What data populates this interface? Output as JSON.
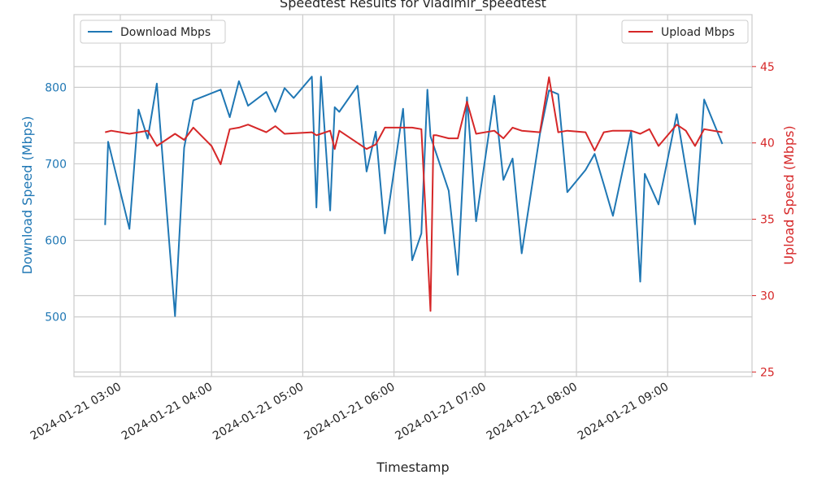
{
  "chart_data": {
    "type": "line",
    "title": "Speedtest Results for vladimir_speedtest",
    "xlabel": "Timestamp",
    "ylabel_left": "Download Speed (Mbps)",
    "ylabel_right": "Upload Speed (Mbps)",
    "x_ticks": [
      "2024-01-21 03:00",
      "2024-01-21 04:00",
      "2024-01-21 05:00",
      "2024-01-21 06:00",
      "2024-01-21 07:00",
      "2024-01-21 08:00",
      "2024-01-21 09:00"
    ],
    "y_left_ticks": [
      500,
      600,
      700,
      800
    ],
    "y_right_ticks": [
      25,
      30,
      35,
      40,
      45
    ],
    "ylim_left": [
      422,
      895
    ],
    "ylim_right": [
      24.7,
      48.4
    ],
    "grid": true,
    "colors": {
      "download": "#1f77b4",
      "upload": "#d62728",
      "grid": "#cccccc",
      "text": "#262626"
    },
    "series": [
      {
        "name": "Download Mbps",
        "axis": "left",
        "legend_position": "top-left",
        "x": [
          "02:50",
          "02:52",
          "03:06",
          "03:12",
          "03:18",
          "03:24",
          "03:30",
          "03:36",
          "03:42",
          "03:48",
          "04:06",
          "04:12",
          "04:18",
          "04:24",
          "04:36",
          "04:42",
          "04:48",
          "04:54",
          "05:06",
          "05:09",
          "05:12",
          "05:18",
          "05:21",
          "05:24",
          "05:36",
          "05:42",
          "05:48",
          "05:54",
          "06:06",
          "06:12",
          "06:18",
          "06:22",
          "06:24",
          "06:36",
          "06:42",
          "06:48",
          "06:54",
          "07:06",
          "07:12",
          "07:18",
          "07:24",
          "07:36",
          "07:42",
          "07:48",
          "07:54",
          "08:06",
          "08:12",
          "08:18",
          "08:24",
          "08:36",
          "08:42",
          "08:45",
          "08:54",
          "09:06",
          "09:18",
          "09:24",
          "09:36"
        ],
        "y": [
          620,
          729,
          615,
          771,
          733,
          805,
          652,
          501,
          721,
          783,
          797,
          761,
          808,
          776,
          794,
          768,
          799,
          786,
          814,
          643,
          814,
          639,
          774,
          768,
          802,
          690,
          742,
          609,
          772,
          574,
          609,
          797,
          736,
          665,
          555,
          787,
          625,
          789,
          679,
          707,
          583,
          739,
          796,
          791,
          663,
          692,
          713,
          673,
          632,
          743,
          546,
          687,
          647,
          765,
          621,
          784,
          726
        ]
      },
      {
        "name": "Upload Mbps",
        "axis": "right",
        "legend_position": "top-right",
        "x": [
          "02:50",
          "02:54",
          "03:06",
          "03:12",
          "03:18",
          "03:24",
          "03:30",
          "03:36",
          "03:42",
          "03:48",
          "04:00",
          "04:06",
          "04:12",
          "04:18",
          "04:24",
          "04:36",
          "04:42",
          "04:48",
          "05:06",
          "05:09",
          "05:12",
          "05:18",
          "05:21",
          "05:24",
          "05:42",
          "05:48",
          "05:54",
          "06:06",
          "06:12",
          "06:18",
          "06:24",
          "06:26",
          "06:28",
          "06:36",
          "06:42",
          "06:48",
          "06:54",
          "07:06",
          "07:12",
          "07:18",
          "07:24",
          "07:36",
          "07:42",
          "07:48",
          "07:54",
          "08:06",
          "08:12",
          "08:18",
          "08:24",
          "08:36",
          "08:42",
          "08:48",
          "08:54",
          "09:06",
          "09:12",
          "09:18",
          "09:24",
          "09:36"
        ],
        "y": [
          40.7,
          40.8,
          40.6,
          40.7,
          40.8,
          39.8,
          40.2,
          40.6,
          40.2,
          41.0,
          39.8,
          38.6,
          40.9,
          41.0,
          41.2,
          40.7,
          41.1,
          40.6,
          40.7,
          40.5,
          40.6,
          40.8,
          39.6,
          40.8,
          39.6,
          39.9,
          41.0,
          41.0,
          41.0,
          40.9,
          29.0,
          40.5,
          40.5,
          40.3,
          40.3,
          42.7,
          40.6,
          40.8,
          40.3,
          41.0,
          40.8,
          40.7,
          44.3,
          40.7,
          40.8,
          40.7,
          39.5,
          40.7,
          40.8,
          40.8,
          40.6,
          40.9,
          39.8,
          41.2,
          40.8,
          39.8,
          40.9,
          40.7
        ]
      }
    ]
  }
}
